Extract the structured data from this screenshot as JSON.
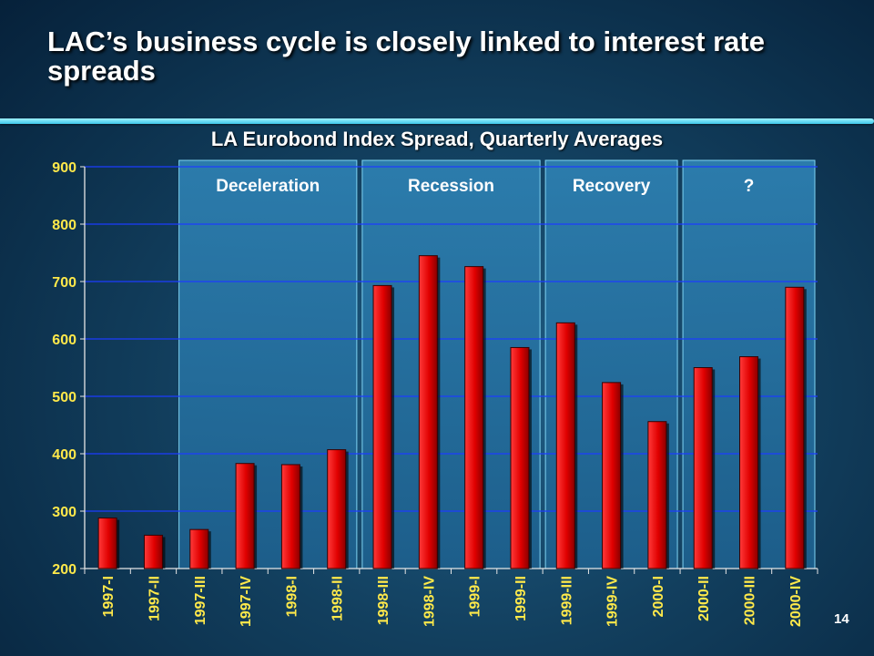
{
  "slide": {
    "title": "LAC’s business cycle is closely linked to interest rate spreads",
    "page_number": "14"
  },
  "colors": {
    "bar": "#e00000",
    "phase_panel": "#2d7fb0",
    "tick_label": "#ffe94a",
    "gridline": "#1c3cff",
    "accent_rule": "#5fdcf5"
  },
  "chart_data": {
    "type": "bar",
    "title": "LA Eurobond Index Spread, Quarterly Averages",
    "xlabel": "",
    "ylabel": "",
    "ylim": [
      200,
      900
    ],
    "yticks": [
      200,
      300,
      400,
      500,
      600,
      700,
      800,
      900
    ],
    "grid": true,
    "categories": [
      "1997-I",
      "1997-II",
      "1997-III",
      "1997-IV",
      "1998-I",
      "1998-II",
      "1998-III",
      "1998-IV",
      "1999-I",
      "1999-II",
      "1999-III",
      "1999-IV",
      "2000-I",
      "2000-II",
      "2000-III",
      "2000-IV"
    ],
    "values": [
      288,
      258,
      268,
      383,
      381,
      407,
      693,
      745,
      726,
      585,
      628,
      524,
      456,
      550,
      569,
      690
    ],
    "phases": [
      {
        "label": "Deceleration",
        "from": "1997-III",
        "to": "1998-II"
      },
      {
        "label": "Recession",
        "from": "1998-III",
        "to": "1999-II"
      },
      {
        "label": "Recovery",
        "from": "1999-III",
        "to": "2000-I"
      },
      {
        "label": "?",
        "from": "2000-II",
        "to": "2000-IV"
      }
    ]
  }
}
